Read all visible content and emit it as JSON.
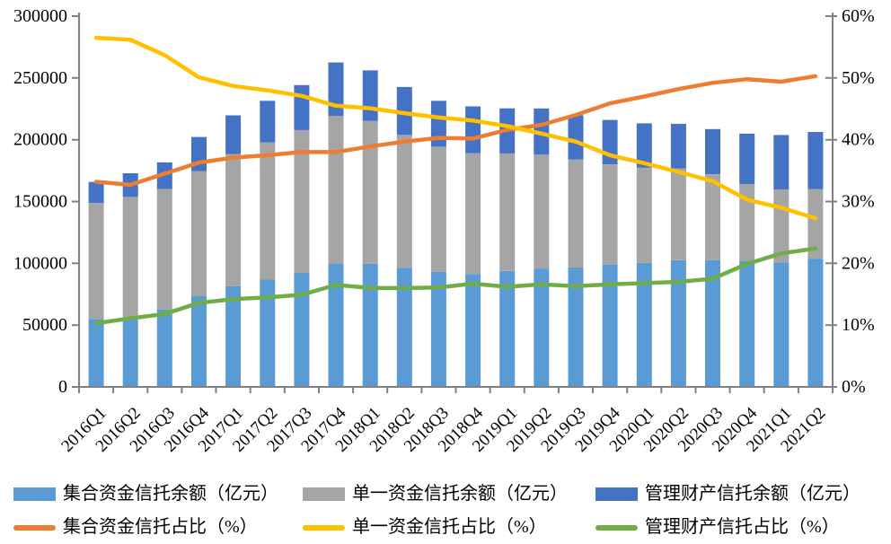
{
  "chart_data": {
    "type": "bar",
    "subtype": "stacked-bar-with-lines-combo",
    "categories": [
      "2016Q1",
      "2016Q2",
      "2016Q3",
      "2016Q4",
      "2017Q1",
      "2017Q2",
      "2017Q3",
      "2017Q4",
      "2018Q1",
      "2018Q2",
      "2018Q3",
      "2018Q4",
      "2019Q1",
      "2019Q2",
      "2019Q3",
      "2019Q4",
      "2020Q1",
      "2020Q2",
      "2020Q3",
      "2020Q4",
      "2021Q1",
      "2021Q2"
    ],
    "left_axis": {
      "min": 0,
      "max": 300000,
      "step": 50000,
      "tick_labels": [
        "0",
        "50000",
        "100000",
        "150000",
        "200000",
        "250000",
        "300000"
      ]
    },
    "right_axis": {
      "min": 0,
      "max": 60,
      "step": 10,
      "tick_labels": [
        "0%",
        "10%",
        "20%",
        "30%",
        "40%",
        "50%",
        "60%"
      ]
    },
    "grid": false,
    "legend_position": "bottom",
    "bar_series": [
      {
        "name": "集合资金信托余额（亿元）",
        "key": "collective-balance",
        "color": "#5B9BD5",
        "axis": "left",
        "values": [
          55000,
          56500,
          62700,
          73400,
          81500,
          86800,
          92800,
          99800,
          99600,
          96400,
          93300,
          91300,
          93800,
          95500,
          96800,
          99100,
          100300,
          102600,
          102600,
          102000,
          100700,
          103800
        ]
      },
      {
        "name": "单一资金信托余额（亿元）",
        "key": "single-balance",
        "color": "#A5A5A5",
        "axis": "left",
        "values": [
          93700,
          97200,
          97600,
          101300,
          107000,
          111100,
          115000,
          119400,
          115500,
          107500,
          100900,
          97800,
          95100,
          92400,
          87300,
          81000,
          77200,
          74100,
          69500,
          62100,
          59100,
          56300
        ]
      },
      {
        "name": "管理财产信托余额（亿元）",
        "key": "property-balance",
        "color": "#4472C4",
        "axis": "left",
        "values": [
          17100,
          19200,
          21400,
          27500,
          31200,
          33600,
          36400,
          43300,
          41000,
          38800,
          37300,
          37900,
          36500,
          37400,
          35800,
          35900,
          35800,
          36200,
          36500,
          40800,
          44000,
          46200
        ]
      }
    ],
    "line_series": [
      {
        "name": "集合资金信托占比（%）",
        "key": "collective-share",
        "color": "#ED7D31",
        "axis": "right",
        "values": [
          33.2,
          32.7,
          34.5,
          36.3,
          37.1,
          37.5,
          38.0,
          38.0,
          38.9,
          39.7,
          40.3,
          40.2,
          41.6,
          42.4,
          44.0,
          45.9,
          47.0,
          48.2,
          49.2,
          49.8,
          49.4,
          50.3
        ]
      },
      {
        "name": "单一资金信托占比（%）",
        "key": "single-share",
        "color": "#FFC000",
        "axis": "right",
        "values": [
          56.5,
          56.2,
          53.7,
          50.1,
          48.7,
          48.0,
          47.1,
          45.5,
          45.1,
          44.3,
          43.6,
          43.1,
          42.2,
          41.0,
          39.7,
          37.5,
          36.2,
          34.8,
          33.3,
          30.3,
          29.0,
          27.3
        ]
      },
      {
        "name": "管理财产信托占比（%）",
        "key": "property-share",
        "color": "#70AD47",
        "axis": "right",
        "values": [
          10.3,
          11.1,
          11.8,
          13.6,
          14.2,
          14.5,
          14.9,
          16.5,
          16.0,
          16.0,
          16.1,
          16.7,
          16.2,
          16.6,
          16.3,
          16.6,
          16.8,
          17.0,
          17.5,
          19.9,
          21.6,
          22.4
        ]
      }
    ],
    "axis_color": "#808080",
    "text_color": "#000000"
  }
}
